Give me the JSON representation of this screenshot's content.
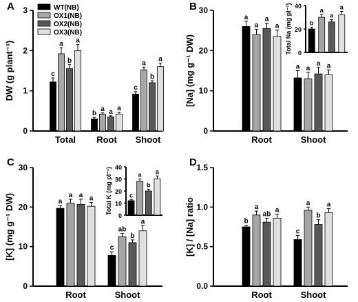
{
  "colors": {
    "wt": "#000000",
    "ox1": "#a6a6a6",
    "ox2": "#595959",
    "ox3": "#e0e0e0"
  },
  "legend": [
    "WT(NB)",
    "OX1(NB)",
    "OX2(NB)",
    "OX3(NB)"
  ],
  "chart_data": [
    {
      "panel": "A",
      "type": "bar",
      "ylabel": "DW  (g plant⁻¹)",
      "ylim": [
        0,
        3
      ],
      "yticks": [
        "0",
        "1",
        "2",
        "3"
      ],
      "categories": [
        "Total",
        "Root",
        "Shoot"
      ],
      "series": [
        {
          "name": "WT(NB)",
          "values": [
            1.22,
            0.3,
            0.92
          ],
          "errors": [
            0.1,
            0.04,
            0.06
          ],
          "letters": [
            "c",
            "b",
            "c"
          ]
        },
        {
          "name": "OX1(NB)",
          "values": [
            1.92,
            0.42,
            1.52
          ],
          "errors": [
            0.15,
            0.03,
            0.07
          ],
          "letters": [
            "a",
            "a",
            "a"
          ]
        },
        {
          "name": "OX2(NB)",
          "values": [
            1.55,
            0.35,
            1.2
          ],
          "errors": [
            0.1,
            0.03,
            0.05
          ],
          "letters": [
            "b",
            "a",
            "b"
          ]
        },
        {
          "name": "OX3(NB)",
          "values": [
            2.0,
            0.42,
            1.6
          ],
          "errors": [
            0.15,
            0.04,
            0.09
          ],
          "letters": [
            "a",
            "a",
            "a"
          ]
        }
      ],
      "inset": null
    },
    {
      "panel": "B",
      "type": "bar",
      "ylabel": "[Na]  (mg g⁻¹ DW)",
      "ylim": [
        0,
        30
      ],
      "yticks": [
        "0",
        "10",
        "20",
        "30"
      ],
      "categories": [
        "Root",
        "Shoot"
      ],
      "series": [
        {
          "name": "WT(NB)",
          "values": [
            26.0,
            13.2
          ],
          "errors": [
            1.3,
            1.8
          ],
          "letters": [
            "a",
            "a"
          ]
        },
        {
          "name": "OX1(NB)",
          "values": [
            24.0,
            13.0
          ],
          "errors": [
            1.3,
            1.6
          ],
          "letters": [
            "a",
            "a"
          ]
        },
        {
          "name": "OX2(NB)",
          "values": [
            25.5,
            14.2
          ],
          "errors": [
            1.3,
            1.6
          ],
          "letters": [
            "a",
            "a"
          ]
        },
        {
          "name": "OX3(NB)",
          "values": [
            23.5,
            14.0
          ],
          "errors": [
            1.6,
            1.2
          ],
          "letters": [
            "a",
            "a"
          ]
        }
      ],
      "inset": {
        "ylabel": "Total Na  (mg pl⁻¹)",
        "ylim": [
          0,
          40
        ],
        "yticks": [
          "0",
          "20",
          "40"
        ],
        "values": [
          20,
          30,
          26,
          32
        ],
        "errors": [
          1.5,
          2.5,
          2.0,
          3.0
        ],
        "letters": [
          "b",
          "a",
          "a",
          "a"
        ]
      }
    },
    {
      "panel": "C",
      "type": "bar",
      "ylabel": "[K]  (mg g⁻¹ DW)",
      "ylim": [
        0,
        30
      ],
      "yticks": [
        "0",
        "10",
        "20",
        "30"
      ],
      "categories": [
        "Root",
        "Shoot"
      ],
      "series": [
        {
          "name": "WT(NB)",
          "values": [
            19.7,
            7.8
          ],
          "errors": [
            0.7,
            0.9
          ],
          "letters": [
            "a",
            "c"
          ]
        },
        {
          "name": "OX1(NB)",
          "values": [
            21.0,
            12.5
          ],
          "errors": [
            1.0,
            0.8
          ],
          "letters": [
            "a",
            "ab"
          ]
        },
        {
          "name": "OX2(NB)",
          "values": [
            20.7,
            11.0
          ],
          "errors": [
            1.3,
            0.7
          ],
          "letters": [
            "a",
            "b"
          ]
        },
        {
          "name": "OX3(NB)",
          "values": [
            20.2,
            14.0
          ],
          "errors": [
            1.0,
            1.3
          ],
          "letters": [
            "a",
            "a"
          ]
        }
      ],
      "inset": {
        "ylabel": "Total K  (mg pl⁻¹)",
        "ylim": [
          0,
          40
        ],
        "yticks": [
          "0",
          "10",
          "20",
          "30",
          "40"
        ],
        "values": [
          12,
          28,
          20,
          30
        ],
        "errors": [
          1.0,
          2.0,
          1.5,
          2.5
        ],
        "letters": [
          "c",
          "a",
          "b",
          "a"
        ]
      }
    },
    {
      "panel": "D",
      "type": "bar",
      "ylabel": "[K] / [Na] ratio",
      "ylim": [
        0,
        1.5
      ],
      "yticks": [
        "0.0",
        "0.5",
        "1.0",
        "1.5"
      ],
      "categories": [
        "Root",
        "Shoot"
      ],
      "series": [
        {
          "name": "WT(NB)",
          "values": [
            0.75,
            0.59
          ],
          "errors": [
            0.02,
            0.05
          ],
          "letters": [
            "b",
            "c"
          ]
        },
        {
          "name": "OX1(NB)",
          "values": [
            0.9,
            0.96
          ],
          "errors": [
            0.05,
            0.04
          ],
          "letters": [
            "a",
            "a"
          ]
        },
        {
          "name": "OX2(NB)",
          "values": [
            0.81,
            0.78
          ],
          "errors": [
            0.05,
            0.06
          ],
          "letters": [
            "ab",
            "b"
          ]
        },
        {
          "name": "OX3(NB)",
          "values": [
            0.86,
            0.93
          ],
          "errors": [
            0.05,
            0.05
          ],
          "letters": [
            "a",
            "a"
          ]
        }
      ],
      "inset": null
    }
  ]
}
